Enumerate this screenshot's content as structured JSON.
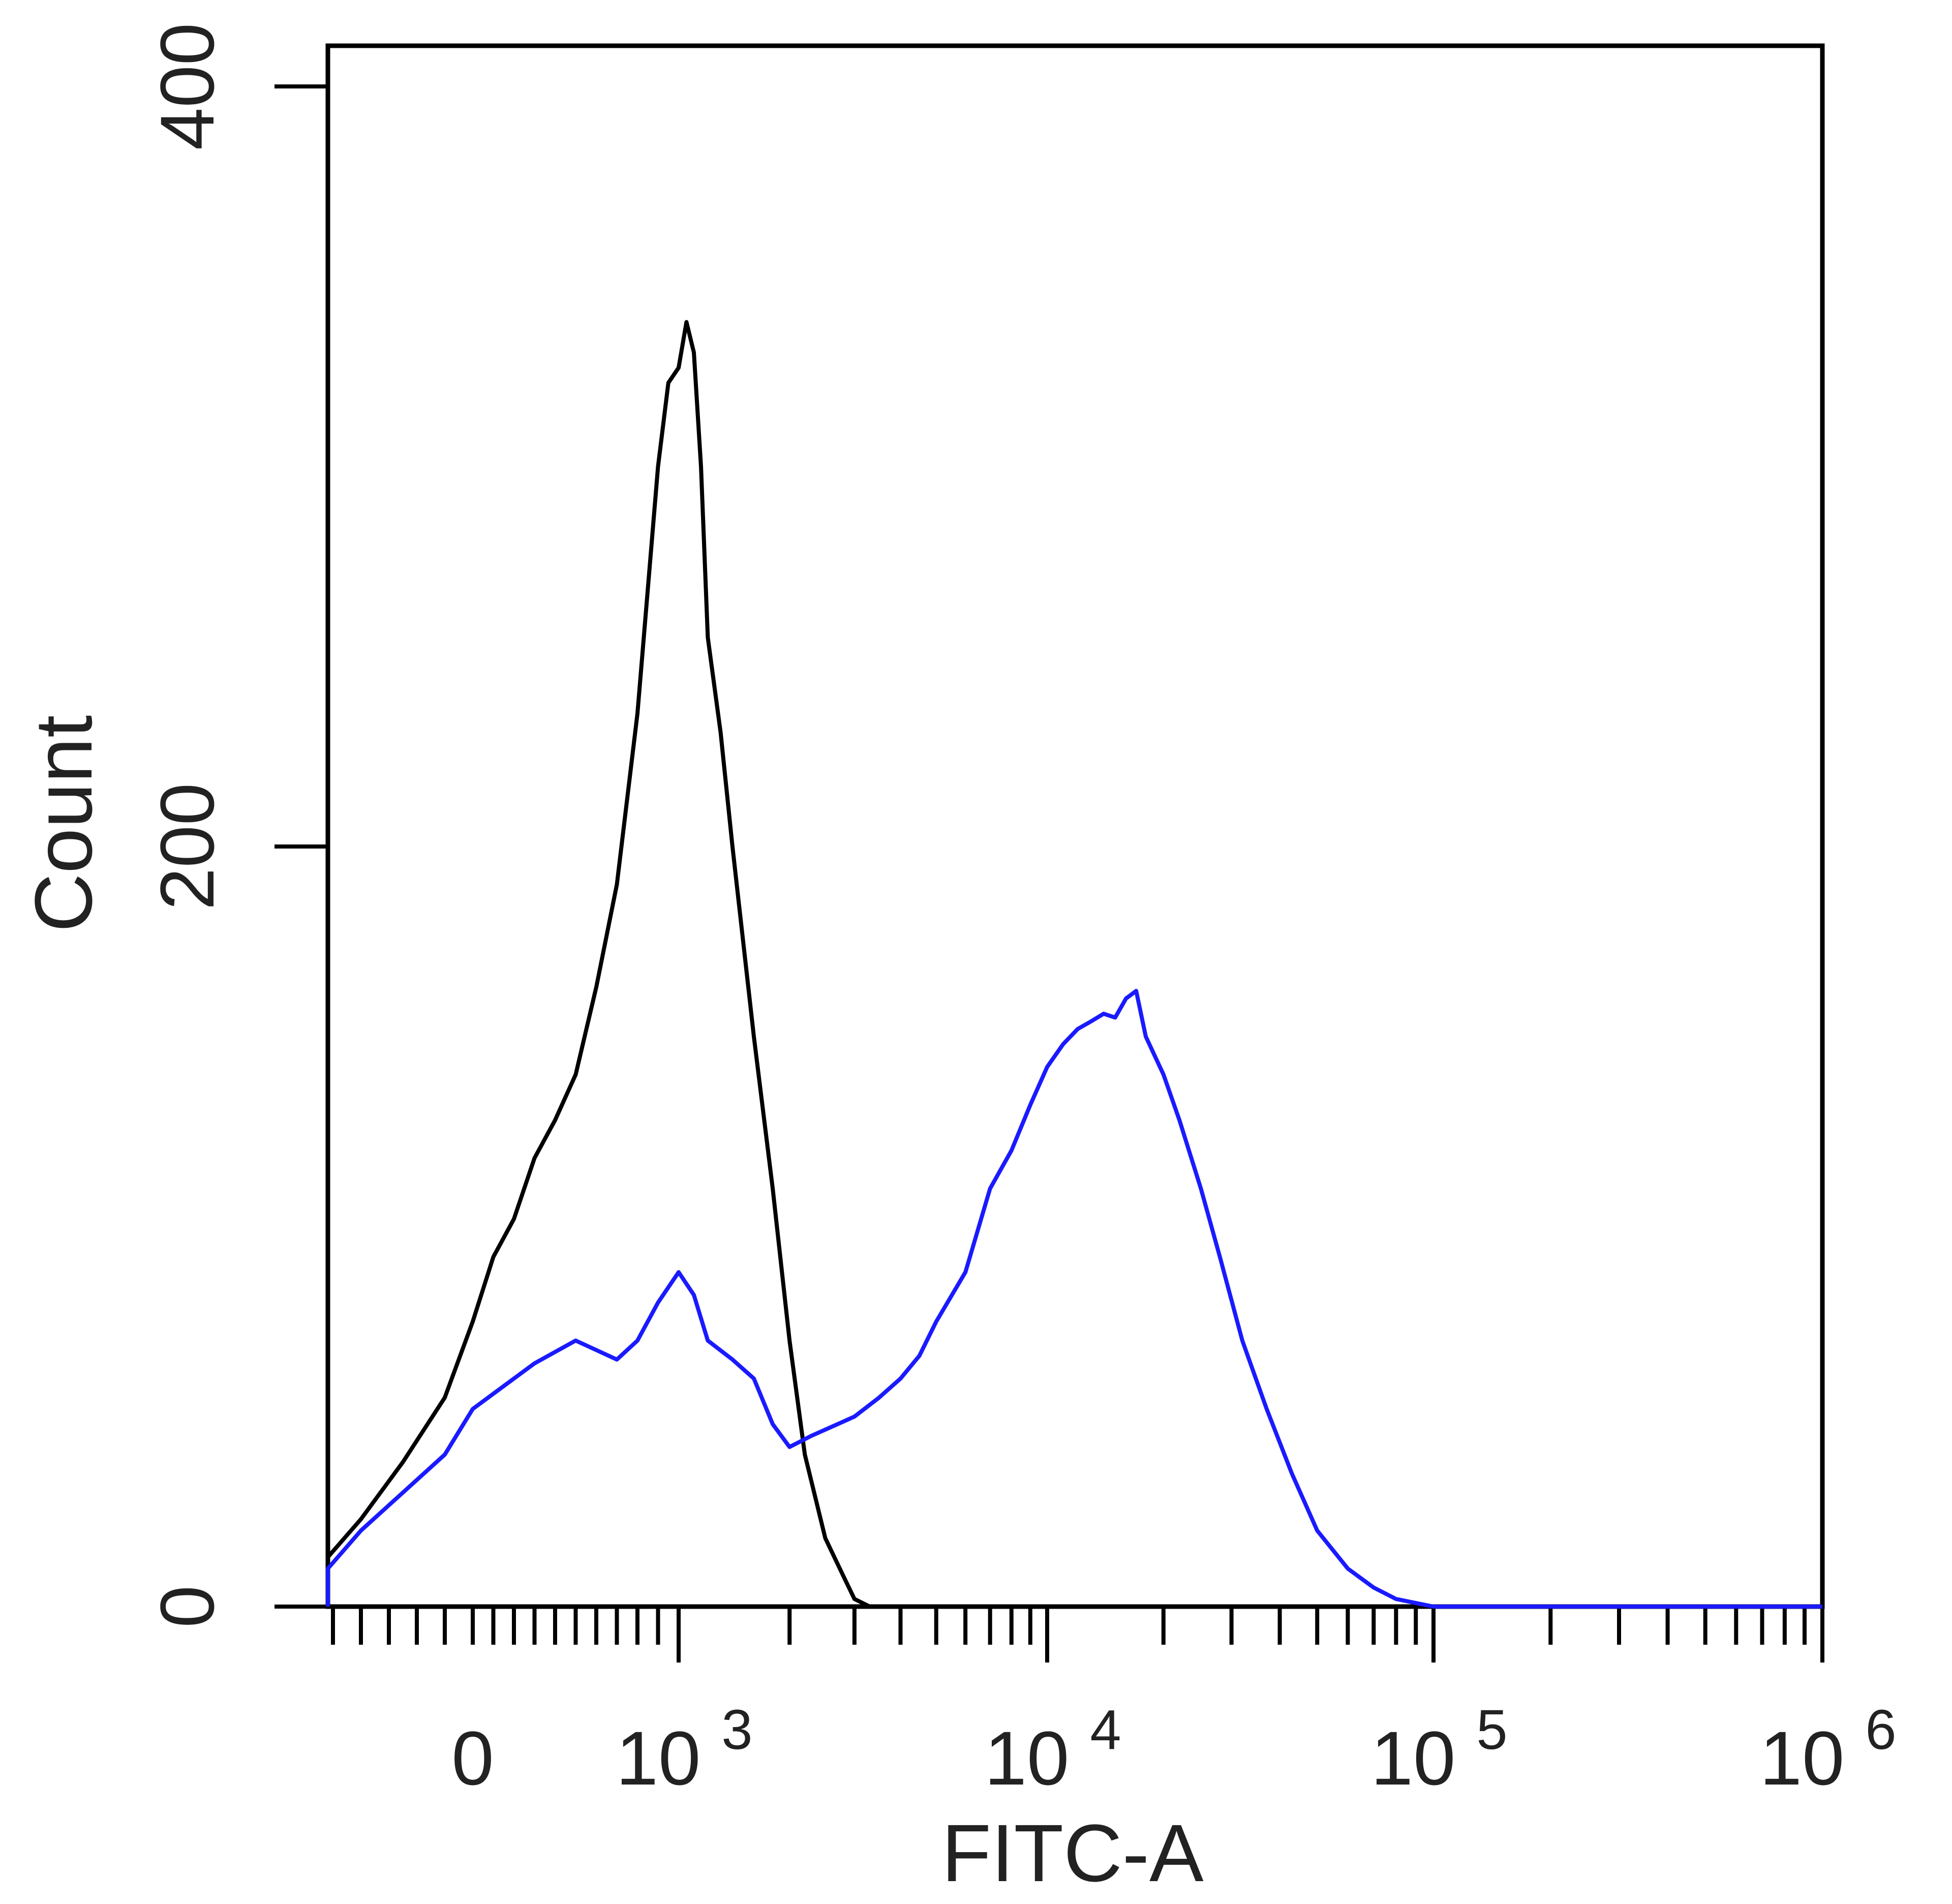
{
  "chart_data": {
    "type": "line",
    "title": "",
    "xlabel": "FITC-A",
    "ylabel": "Count",
    "x_scale": "biexponential",
    "xlim": [
      -700,
      1000000
    ],
    "ylim": [
      0,
      400
    ],
    "x_tick_labels": [
      {
        "value": 0,
        "base": "0",
        "exp": ""
      },
      {
        "value": 1000,
        "base": "10",
        "exp": "3"
      },
      {
        "value": 10000,
        "base": "10",
        "exp": "4"
      },
      {
        "value": 100000,
        "base": "10",
        "exp": "5"
      },
      {
        "value": 1000000,
        "base": "10",
        "exp": "6"
      }
    ],
    "y_ticks": [
      {
        "value": 0,
        "label": "0"
      },
      {
        "value": 200,
        "label": "200"
      },
      {
        "value": 400,
        "label": "400"
      }
    ],
    "grid": false,
    "legend": "none",
    "colors": {
      "black_series": "#000000",
      "blue_series": "#1a1aff",
      "axis": "#000000"
    },
    "series": [
      {
        "color": "#000000",
        "x": [
          -700,
          -550,
          -400,
          -250,
          -100,
          0,
          100,
          200,
          300,
          400,
          500,
          600,
          700,
          800,
          900,
          950,
          1000,
          1050,
          1100,
          1150,
          1200,
          1300,
          1400,
          1600,
          1800,
          2000,
          2200,
          2500,
          2800,
          3000,
          3300
        ],
        "y": [
          2,
          13,
          23,
          38,
          55,
          75,
          92,
          102,
          118,
          128,
          140,
          163,
          190,
          235,
          300,
          322,
          326,
          338,
          330,
          300,
          255,
          230,
          200,
          150,
          110,
          70,
          40,
          18,
          8,
          2,
          0
        ]
      },
      {
        "color": "#1a1aff",
        "x": [
          -700,
          -550,
          -400,
          -250,
          -100,
          0,
          100,
          200,
          300,
          500,
          700,
          800,
          900,
          1000,
          1100,
          1200,
          1400,
          1600,
          1800,
          2000,
          2300,
          2700,
          3000,
          3500,
          4000,
          4500,
          5000,
          6000,
          7000,
          8000,
          9000,
          10000,
          11000,
          12000,
          13000,
          14000,
          15000,
          16000,
          17000,
          18000,
          20000,
          22000,
          25000,
          28000,
          32000,
          37000,
          43000,
          50000,
          60000,
          70000,
          80000,
          100000,
          1000000
        ],
        "y": [
          0,
          10,
          20,
          30,
          40,
          52,
          56,
          60,
          64,
          70,
          65,
          70,
          80,
          88,
          82,
          70,
          65,
          60,
          48,
          42,
          45,
          48,
          50,
          55,
          60,
          66,
          75,
          88,
          110,
          120,
          132,
          142,
          148,
          152,
          154,
          156,
          155,
          160,
          162,
          150,
          140,
          128,
          110,
          92,
          70,
          52,
          35,
          20,
          10,
          5,
          2,
          0,
          0
        ]
      }
    ]
  }
}
